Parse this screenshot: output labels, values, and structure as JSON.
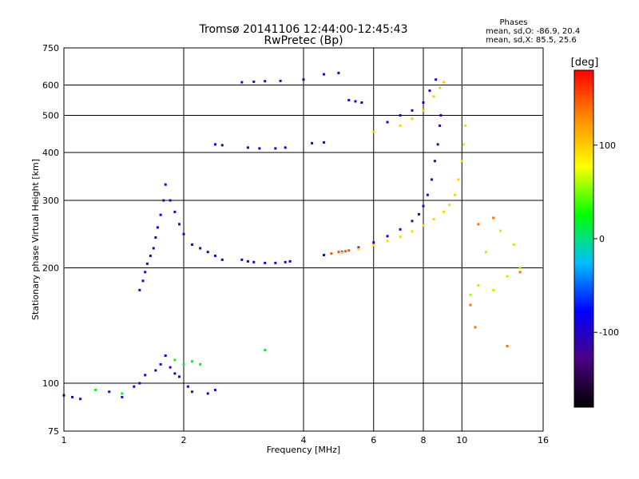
{
  "chart_data": {
    "type": "scatter",
    "title": "Tromsø 20141106 12:44:00-12:45:43",
    "subtitle": "RwPretec (Bp)",
    "xlabel": "Frequency [MHz]",
    "ylabel": "Stationary phase Virtual Height [km]",
    "x_scale": "log",
    "y_scale": "log",
    "xlim": [
      1,
      16
    ],
    "ylim": [
      75,
      750
    ],
    "grid": true,
    "x_ticks": [
      1,
      2,
      4,
      6,
      8,
      10,
      16
    ],
    "x_tick_labels": [
      "1",
      "2",
      "4",
      "6",
      "8",
      "10",
      "16"
    ],
    "y_ticks": [
      75,
      100,
      200,
      300,
      400,
      500,
      600,
      750
    ],
    "y_tick_labels": [
      "75",
      "100",
      "200",
      "300",
      "400",
      "500",
      "600",
      "750"
    ],
    "stats": {
      "heading": "Phases",
      "line_o": "mean, sd,O: -86.9, 20.4",
      "line_x": "mean, sd,X:  85.5, 25.6"
    },
    "colorbar": {
      "label": "[deg]",
      "range": [
        -180,
        180
      ],
      "ticks": [
        100,
        0,
        -100
      ],
      "tick_labels": [
        "100",
        "0",
        "-100"
      ],
      "colors": [
        "#000000",
        "#4b0082",
        "#0000ff",
        "#00bfff",
        "#00ff00",
        "#ffff00",
        "#ff8c00",
        "#ff0000"
      ]
    },
    "series": [
      {
        "phase": -95,
        "points": [
          [
            1.0,
            93
          ],
          [
            1.05,
            92
          ],
          [
            1.1,
            91
          ],
          [
            1.3,
            95
          ],
          [
            1.4,
            92
          ],
          [
            1.5,
            98
          ],
          [
            1.55,
            100
          ],
          [
            1.6,
            105
          ],
          [
            1.7,
            108
          ],
          [
            1.75,
            112
          ],
          [
            1.8,
            118
          ],
          [
            1.85,
            110
          ],
          [
            1.9,
            106
          ],
          [
            1.95,
            104
          ],
          [
            2.05,
            98
          ],
          [
            2.1,
            95
          ],
          [
            2.3,
            94
          ],
          [
            2.4,
            96
          ]
        ]
      },
      {
        "phase": -100,
        "points": [
          [
            1.55,
            175
          ],
          [
            1.58,
            185
          ],
          [
            1.6,
            195
          ],
          [
            1.62,
            205
          ],
          [
            1.65,
            215
          ],
          [
            1.68,
            225
          ],
          [
            1.7,
            240
          ],
          [
            1.72,
            255
          ],
          [
            1.75,
            275
          ],
          [
            1.78,
            300
          ],
          [
            1.8,
            330
          ],
          [
            1.85,
            300
          ],
          [
            1.9,
            280
          ],
          [
            1.95,
            260
          ],
          [
            2.0,
            245
          ],
          [
            2.1,
            230
          ],
          [
            2.2,
            225
          ],
          [
            2.3,
            220
          ],
          [
            2.4,
            215
          ],
          [
            2.5,
            210
          ]
        ]
      },
      {
        "phase": -95,
        "points": [
          [
            2.8,
            210
          ],
          [
            2.9,
            208
          ],
          [
            3.0,
            207
          ],
          [
            3.2,
            206
          ],
          [
            3.4,
            206
          ],
          [
            3.6,
            207
          ],
          [
            3.7,
            208
          ]
        ]
      },
      {
        "phase": -110,
        "points": [
          [
            4.5,
            216
          ],
          [
            5.0,
            220
          ],
          [
            5.5,
            226
          ],
          [
            6.0,
            233
          ],
          [
            6.5,
            242
          ],
          [
            7.0,
            252
          ],
          [
            7.5,
            265
          ],
          [
            7.8,
            276
          ],
          [
            8.0,
            290
          ],
          [
            8.2,
            310
          ],
          [
            8.4,
            340
          ],
          [
            8.55,
            380
          ],
          [
            8.7,
            420
          ],
          [
            8.8,
            470
          ],
          [
            8.85,
            500
          ]
        ]
      },
      {
        "phase": 95,
        "points": [
          [
            5.0,
            219
          ],
          [
            5.5,
            224
          ],
          [
            6.0,
            229
          ],
          [
            6.5,
            235
          ],
          [
            7.0,
            241
          ],
          [
            7.5,
            249
          ],
          [
            8.0,
            258
          ],
          [
            8.5,
            268
          ],
          [
            9.0,
            280
          ],
          [
            9.3,
            292
          ],
          [
            9.6,
            310
          ],
          [
            9.8,
            340
          ],
          [
            10.0,
            380
          ],
          [
            10.1,
            420
          ],
          [
            10.2,
            470
          ]
        ]
      },
      {
        "phase": 100,
        "points": [
          [
            6.0,
            453
          ],
          [
            7.0,
            470
          ],
          [
            7.5,
            490
          ],
          [
            8.0,
            515
          ],
          [
            8.5,
            560
          ],
          [
            8.8,
            590
          ],
          [
            9.0,
            610
          ]
        ]
      },
      {
        "phase": -105,
        "points": [
          [
            6.5,
            480
          ],
          [
            7.0,
            500
          ],
          [
            7.5,
            515
          ],
          [
            8.0,
            540
          ],
          [
            8.3,
            580
          ],
          [
            8.6,
            620
          ]
        ]
      },
      {
        "phase": -95,
        "points": [
          [
            2.4,
            420
          ],
          [
            2.5,
            418
          ],
          [
            2.9,
            412
          ],
          [
            3.1,
            410
          ],
          [
            3.4,
            410
          ],
          [
            3.6,
            412
          ],
          [
            4.2,
            423
          ],
          [
            4.5,
            425
          ]
        ]
      },
      {
        "phase": -105,
        "points": [
          [
            2.8,
            610
          ],
          [
            3.0,
            612
          ],
          [
            3.2,
            614
          ],
          [
            3.5,
            615
          ],
          [
            4.0,
            620
          ],
          [
            4.5,
            640
          ],
          [
            4.9,
            645
          ]
        ]
      },
      {
        "phase": -100,
        "points": [
          [
            5.2,
            548
          ],
          [
            5.4,
            544
          ],
          [
            5.6,
            540
          ]
        ]
      },
      {
        "phase": 150,
        "points": [
          [
            4.7,
            218
          ],
          [
            4.9,
            220
          ],
          [
            5.1,
            221
          ],
          [
            5.2,
            222
          ]
        ]
      },
      {
        "phase": 60,
        "points": [
          [
            11.0,
            180
          ],
          [
            12.0,
            175
          ],
          [
            13.0,
            190
          ],
          [
            14.0,
            200
          ],
          [
            11.5,
            220
          ],
          [
            10.5,
            170
          ],
          [
            12.5,
            250
          ],
          [
            13.5,
            230
          ]
        ]
      },
      {
        "phase": 140,
        "points": [
          [
            10.5,
            160
          ],
          [
            10.8,
            140
          ],
          [
            13.0,
            125
          ],
          [
            14.0,
            195
          ],
          [
            11.0,
            260
          ],
          [
            12.0,
            270
          ]
        ]
      },
      {
        "phase": 20,
        "points": [
          [
            1.9,
            115
          ],
          [
            2.0,
            112
          ],
          [
            2.1,
            114
          ],
          [
            2.2,
            112
          ],
          [
            1.2,
            96
          ],
          [
            1.4,
            94
          ],
          [
            3.2,
            122
          ]
        ]
      }
    ]
  }
}
